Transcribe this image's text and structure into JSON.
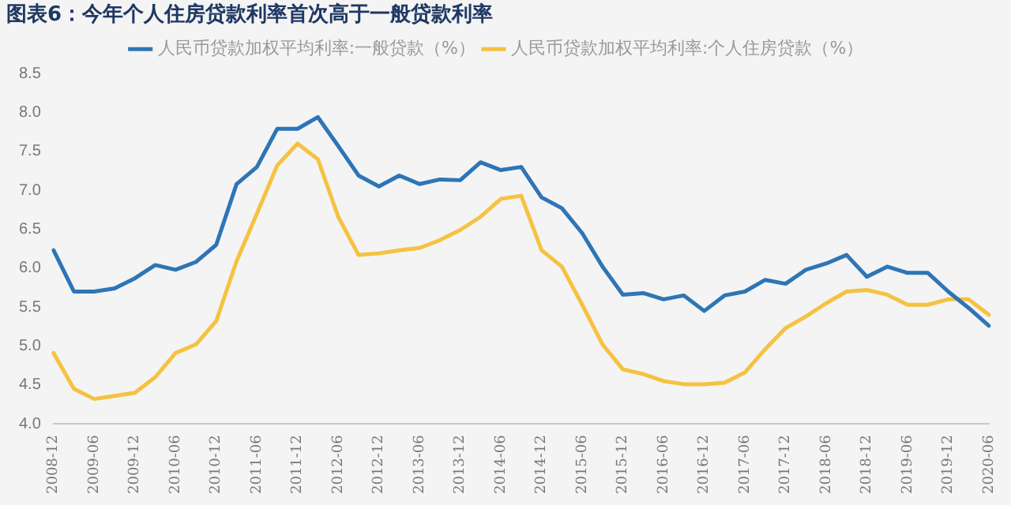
{
  "chart_data": {
    "type": "line",
    "title": "图表6：今年个人住房贷款利率首次高于一般贷款利率",
    "categories": [
      "2008-12",
      null,
      "2009-06",
      null,
      "2009-12",
      null,
      "2010-06",
      null,
      "2010-12",
      null,
      "2011-06",
      null,
      "2011-12",
      null,
      "2012-06",
      null,
      "2012-12",
      null,
      "2013-06",
      null,
      "2013-12",
      null,
      "2014-06",
      null,
      "2014-12",
      null,
      "2015-06",
      null,
      "2015-12",
      null,
      "2016-06",
      null,
      "2016-12",
      null,
      "2017-06",
      null,
      "2017-12",
      null,
      "2018-06",
      null,
      "2018-12",
      null,
      "2019-06",
      null,
      "2019-12",
      null,
      "2020-06"
    ],
    "series": [
      {
        "name": "人民币贷款加权平均利率:一般贷款（%）",
        "color": "#2e75b6",
        "values": [
          6.23,
          5.7,
          5.7,
          5.74,
          5.87,
          6.04,
          5.98,
          6.08,
          6.3,
          7.08,
          7.3,
          7.79,
          7.79,
          7.94,
          7.57,
          7.19,
          7.05,
          7.19,
          7.08,
          7.14,
          7.13,
          7.36,
          7.26,
          7.3,
          6.91,
          6.77,
          6.45,
          6.02,
          5.66,
          5.68,
          5.6,
          5.65,
          5.45,
          5.65,
          5.7,
          5.85,
          5.8,
          5.98,
          6.06,
          6.17,
          5.89,
          6.02,
          5.94,
          5.94,
          5.7,
          5.49,
          5.26
        ]
      },
      {
        "name": "人民币贷款加权平均利率:个人住房贷款（%）",
        "color": "#f5c242",
        "values": [
          4.91,
          4.45,
          4.32,
          4.36,
          4.4,
          4.6,
          4.91,
          5.02,
          5.32,
          6.09,
          6.7,
          7.32,
          7.6,
          7.4,
          6.66,
          6.17,
          6.19,
          6.23,
          6.26,
          6.36,
          6.49,
          6.66,
          6.89,
          6.93,
          6.23,
          6.02,
          5.53,
          5.02,
          4.7,
          4.64,
          4.55,
          4.51,
          4.51,
          4.53,
          4.66,
          4.96,
          5.23,
          5.38,
          5.55,
          5.7,
          5.72,
          5.66,
          5.53,
          5.53,
          5.6,
          5.6,
          5.4
        ]
      }
    ],
    "ylim": [
      4.0,
      8.5
    ],
    "yticks": [
      {
        "value": 4,
        "label": "4.0"
      },
      4.5,
      {
        "value": 5,
        "label": "5.0"
      },
      5.5,
      {
        "value": 6,
        "label": "6.0"
      },
      6.5,
      {
        "value": 7,
        "label": "7.0"
      },
      7.5,
      {
        "value": 8,
        "label": "8.0"
      },
      8.5
    ],
    "grid": false,
    "legend": "top",
    "marker": "none",
    "line_style": "solid"
  }
}
